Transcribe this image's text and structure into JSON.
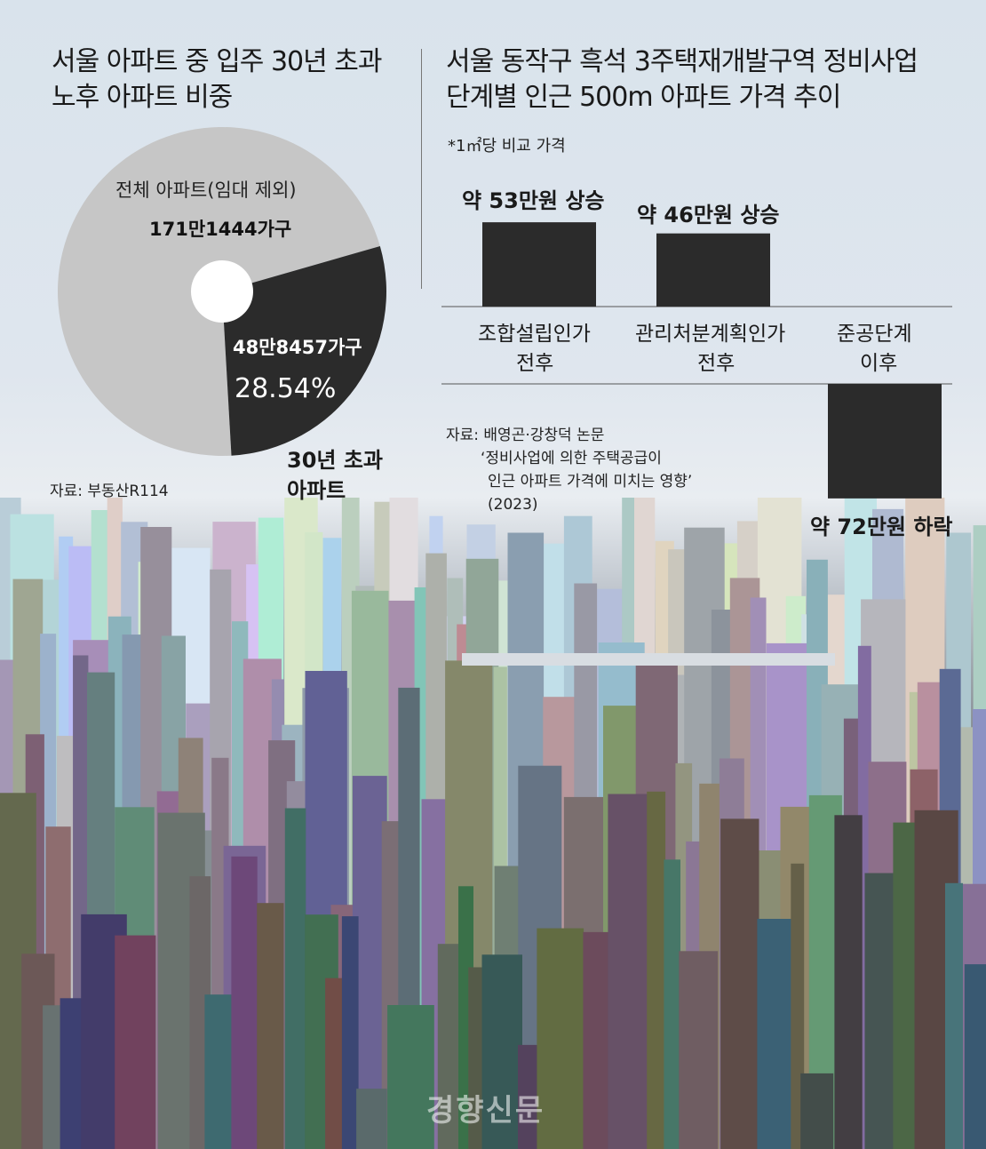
{
  "left_title": {
    "line1": "서울 아파트 중 입주 30년 초과",
    "line2": "노후 아파트 비중"
  },
  "right_title": {
    "line1": "서울 동작구 흑석 3주택재개발구역 정비사업",
    "line2": "단계별 인근 500m 아파트 가격 추이",
    "note": "*1㎡당 비교 가격"
  },
  "pie_source": "자료: 부동산R114",
  "bar_source": {
    "line1": "자료: 배영곤·강창덕 논문",
    "line2": "‘정비사업에 의한 주택공급이",
    "line3": "인근 아파트 가격에 미치는 영향’",
    "line4": "(2023)"
  },
  "watermark": "경향신문",
  "colors": {
    "pie_total": "#c6c6c6",
    "pie_old": "#2b2b2b",
    "bar": "#2b2b2b",
    "hole": "#ffffff"
  },
  "chart_data": [
    {
      "type": "pie",
      "slices": [
        {
          "label": "전체 아파트(임대 제외)",
          "value_text": "171만1444가구",
          "value": 1711444
        },
        {
          "label": "30년 초과 아파트",
          "label_line1": "30년 초과",
          "label_line2": "아파트",
          "value_text": "48만8457가구",
          "value": 488457,
          "percent": 28.54,
          "percent_text": "28.54%"
        }
      ]
    },
    {
      "type": "bar",
      "categories": [
        {
          "line1": "조합설립인가",
          "line2": "전후"
        },
        {
          "line1": "관리처분계획인가",
          "line2": "전후"
        },
        {
          "line1": "준공단계",
          "line2": "이후"
        }
      ],
      "values": [
        53,
        46,
        -72
      ],
      "unit": "만원",
      "data_labels": [
        "약 53만원 상승",
        "약 46만원 상승",
        "약 72만원 하락"
      ]
    }
  ]
}
